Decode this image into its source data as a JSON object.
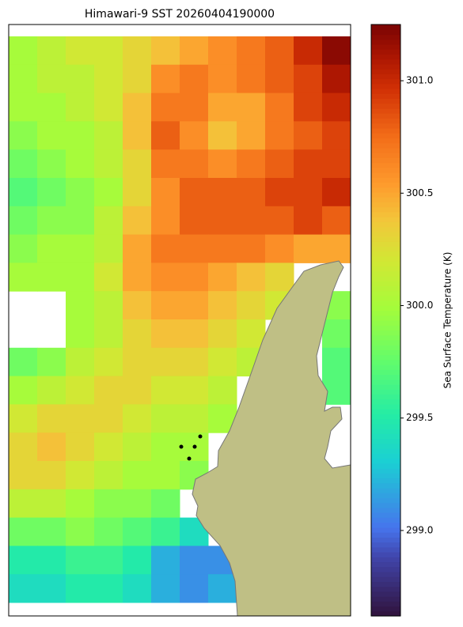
{
  "chart_data": {
    "type": "heatmap",
    "title": "Himawari-9 SST 20260404190000",
    "colorbar_label": "Sea Surface Temperature (K)",
    "colormap": "turbo",
    "clim": [
      298.62,
      301.25
    ],
    "cticks": [
      {
        "value": 299,
        "label": "299.0"
      },
      299.5,
      {
        "value": 300,
        "label": "300.0"
      },
      300.5,
      {
        "value": 301,
        "label": "301.0"
      }
    ],
    "values": [
      [
        300.0,
        300.1,
        300.2,
        300.2,
        300.3,
        300.4,
        300.5,
        300.6,
        300.7,
        300.8,
        301.0,
        301.2
      ],
      [
        300.0,
        300.1,
        300.1,
        300.2,
        300.3,
        300.6,
        300.7,
        300.6,
        300.7,
        300.8,
        300.9,
        301.1
      ],
      [
        300.0,
        300.0,
        300.1,
        300.2,
        300.4,
        300.7,
        300.7,
        300.5,
        300.5,
        300.7,
        300.9,
        301.0
      ],
      [
        299.9,
        300.0,
        300.0,
        300.1,
        300.4,
        300.8,
        300.6,
        300.4,
        300.5,
        300.7,
        300.8,
        300.9
      ],
      [
        299.8,
        299.9,
        300.0,
        300.1,
        300.3,
        300.7,
        300.7,
        300.6,
        300.7,
        300.8,
        300.9,
        300.9
      ],
      [
        299.7,
        299.8,
        299.9,
        300.0,
        300.3,
        300.6,
        300.8,
        300.8,
        300.8,
        300.9,
        300.9,
        301.0
      ],
      [
        299.8,
        299.9,
        299.9,
        300.1,
        300.4,
        300.6,
        300.8,
        300.8,
        300.8,
        300.8,
        300.9,
        300.8
      ],
      [
        299.9,
        300.0,
        300.0,
        300.1,
        300.5,
        300.7,
        300.7,
        300.7,
        300.7,
        300.6,
        300.5,
        300.5
      ],
      [
        300.0,
        300.0,
        300.0,
        300.2,
        300.5,
        300.6,
        300.6,
        300.5,
        300.4,
        300.3,
        null,
        null
      ],
      [
        null,
        null,
        300.0,
        300.1,
        300.4,
        300.5,
        300.5,
        300.4,
        300.3,
        300.2,
        null,
        299.9
      ],
      [
        null,
        null,
        300.0,
        300.1,
        300.3,
        300.4,
        300.4,
        300.3,
        300.2,
        null,
        null,
        299.8
      ],
      [
        299.8,
        299.9,
        300.1,
        300.2,
        300.3,
        300.3,
        300.3,
        300.2,
        300.1,
        null,
        null,
        299.7
      ],
      [
        300.0,
        300.1,
        300.2,
        300.3,
        300.3,
        300.2,
        300.2,
        300.1,
        null,
        null,
        null,
        299.7
      ],
      [
        300.2,
        300.3,
        300.3,
        300.3,
        300.2,
        300.1,
        300.1,
        300.0,
        null,
        null,
        null,
        null
      ],
      [
        300.3,
        300.4,
        300.3,
        300.2,
        300.1,
        300.0,
        300.0,
        null,
        null,
        null,
        null,
        null
      ],
      [
        300.3,
        300.3,
        300.2,
        300.1,
        300.0,
        300.0,
        299.9,
        null,
        null,
        null,
        null,
        null
      ],
      [
        300.1,
        300.1,
        300.0,
        299.9,
        299.9,
        299.8,
        null,
        null,
        null,
        null,
        null,
        null
      ],
      [
        299.8,
        299.8,
        299.9,
        299.8,
        299.7,
        299.6,
        299.4,
        null,
        null,
        null,
        null,
        null
      ],
      [
        299.5,
        299.5,
        299.6,
        299.6,
        299.5,
        299.2,
        299.1,
        299.1,
        null,
        null,
        null,
        null
      ],
      [
        299.4,
        299.4,
        299.5,
        299.5,
        299.4,
        299.2,
        299.1,
        299.2,
        null,
        null,
        null,
        null
      ]
    ]
  }
}
